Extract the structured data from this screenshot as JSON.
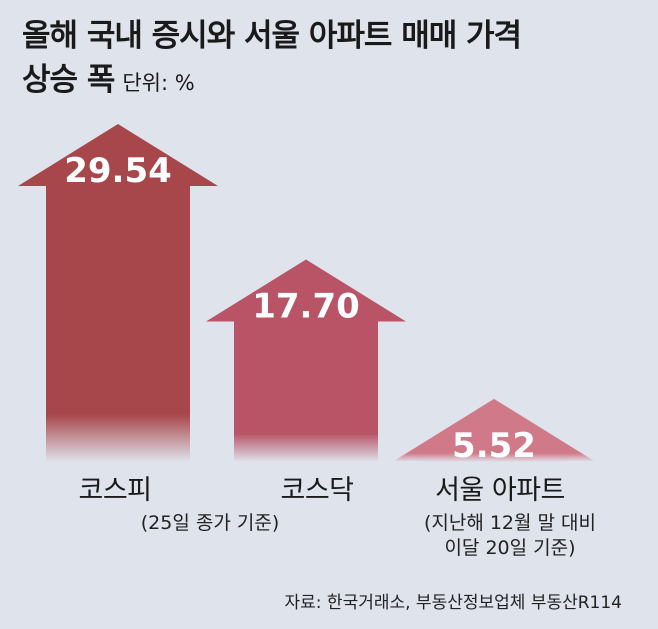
{
  "title_line1": "올해 국내 증시와 서울 아파트 매매 가격",
  "title_line2": "상승 폭",
  "unit": "단위: %",
  "chart_data": {
    "type": "bar",
    "categories": [
      "코스피",
      "코스닥",
      "서울 아파트"
    ],
    "notes": [
      "(25일 종가 기준)",
      "",
      "(지난해 12월 말 대비\n이달 20일 기준)"
    ],
    "values": [
      29.54,
      17.7,
      5.52
    ],
    "value_labels": [
      "29.54",
      "17.70",
      "5.52"
    ],
    "colors": [
      "#a8474b",
      "#b85466",
      "#d07a89"
    ]
  },
  "source": "자료: 한국거래소, 부동산정보업체 부동산R114"
}
